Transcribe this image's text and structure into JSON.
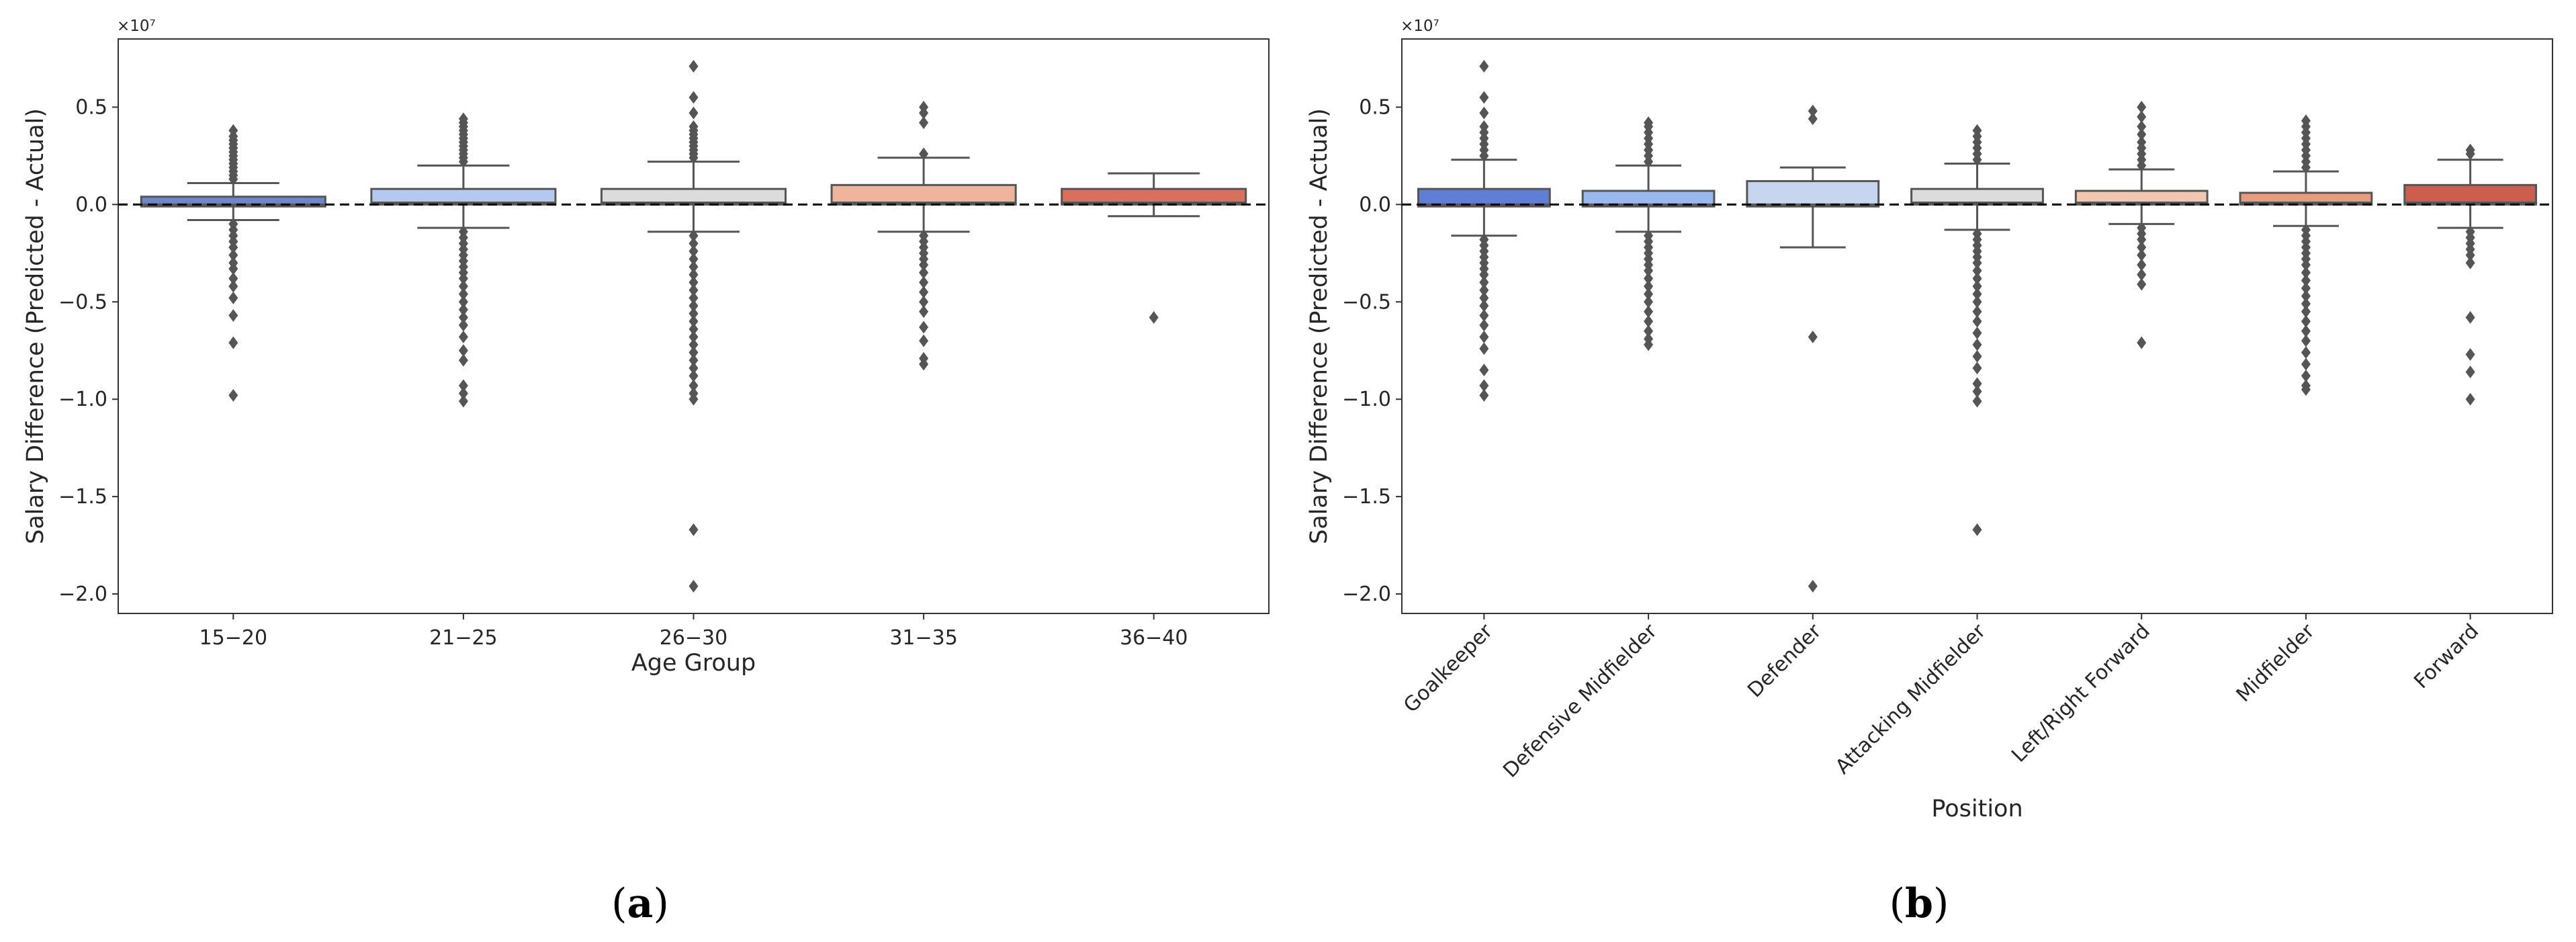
{
  "chart_data": [
    {
      "type": "box",
      "panel": "a",
      "caption_letter": "a",
      "xlabel": "Age Group",
      "ylabel": "Salary Difference (Predicted - Actual)",
      "y_offset_label": "×10⁷",
      "ylim": [
        -2.1,
        0.85
      ],
      "yticks": [
        0.5,
        0.0,
        -0.5,
        -1.0,
        -1.5,
        -2.0
      ],
      "ytick_labels": [
        "0.5",
        "0.0",
        "−0.5",
        "−1.0",
        "−1.5",
        "−2.0"
      ],
      "reference_line_y": 0.0,
      "categories": [
        "15−20",
        "21−25",
        "26−30",
        "31−35",
        "36−40"
      ],
      "colors": [
        "#6f87c8",
        "#b4c8f0",
        "#dcdcdc",
        "#efb59c",
        "#d96f5c"
      ],
      "boxes": [
        {
          "whisker_low": -0.08,
          "q1": -0.01,
          "median": 0.0,
          "q3": 0.04,
          "whisker_high": 0.11,
          "fliers_high": [
            0.13,
            0.15,
            0.17,
            0.19,
            0.21,
            0.23,
            0.25,
            0.27,
            0.29,
            0.31,
            0.33,
            0.35,
            0.38
          ],
          "fliers_low": [
            -0.1,
            -0.13,
            -0.16,
            -0.19,
            -0.22,
            -0.26,
            -0.3,
            -0.33,
            -0.38,
            -0.42,
            -0.48,
            -0.57,
            -0.71,
            -0.98
          ]
        },
        {
          "whisker_low": -0.12,
          "q1": 0.0,
          "median": 0.01,
          "q3": 0.08,
          "whisker_high": 0.2,
          "fliers_high": [
            0.22,
            0.24,
            0.26,
            0.28,
            0.3,
            0.32,
            0.34,
            0.36,
            0.38,
            0.4,
            0.42,
            0.44
          ],
          "fliers_low": [
            -0.14,
            -0.17,
            -0.2,
            -0.23,
            -0.26,
            -0.29,
            -0.32,
            -0.35,
            -0.38,
            -0.42,
            -0.46,
            -0.5,
            -0.54,
            -0.58,
            -0.62,
            -0.68,
            -0.75,
            -0.8,
            -0.93,
            -0.97,
            -1.01
          ]
        },
        {
          "whisker_low": -0.14,
          "q1": 0.0,
          "median": 0.01,
          "q3": 0.08,
          "whisker_high": 0.22,
          "fliers_high": [
            0.24,
            0.26,
            0.28,
            0.3,
            0.32,
            0.34,
            0.36,
            0.38,
            0.4,
            0.47,
            0.55,
            0.71
          ],
          "fliers_low": [
            -0.16,
            -0.2,
            -0.24,
            -0.28,
            -0.32,
            -0.36,
            -0.4,
            -0.44,
            -0.48,
            -0.52,
            -0.56,
            -0.6,
            -0.64,
            -0.68,
            -0.72,
            -0.76,
            -0.8,
            -0.84,
            -0.88,
            -0.93,
            -0.97,
            -1.0,
            -1.67,
            -1.96
          ]
        },
        {
          "whisker_low": -0.14,
          "q1": 0.0,
          "median": 0.01,
          "q3": 0.1,
          "whisker_high": 0.24,
          "fliers_high": [
            0.26,
            0.42,
            0.47,
            0.5
          ],
          "fliers_low": [
            -0.16,
            -0.19,
            -0.22,
            -0.25,
            -0.28,
            -0.31,
            -0.35,
            -0.4,
            -0.45,
            -0.5,
            -0.55,
            -0.63,
            -0.7,
            -0.79,
            -0.82
          ]
        },
        {
          "whisker_low": -0.06,
          "q1": 0.0,
          "median": 0.01,
          "q3": 0.08,
          "whisker_high": 0.16,
          "fliers_high": [],
          "fliers_low": [
            -0.58
          ]
        }
      ]
    },
    {
      "type": "box",
      "panel": "b",
      "caption_letter": "b",
      "xlabel": "Position",
      "ylabel": "Salary Difference (Predicted - Actual)",
      "y_offset_label": "×10⁷",
      "ylim": [
        -2.1,
        0.85
      ],
      "yticks": [
        0.5,
        0.0,
        -0.5,
        -1.0,
        -1.5,
        -2.0
      ],
      "ytick_labels": [
        "0.5",
        "0.0",
        "−0.5",
        "−1.0",
        "−1.5",
        "−2.0"
      ],
      "reference_line_y": 0.0,
      "categories": [
        "Goalkeeper",
        "Defensive Midfielder",
        "Defender",
        "Attacking Midfielder",
        "Left/Right Forward",
        "Midfielder",
        "Forward"
      ],
      "colors": [
        "#5f7fd6",
        "#9ab8f0",
        "#c7d5ee",
        "#dcdcdc",
        "#f1c7b0",
        "#e99b7e",
        "#cd5d4d"
      ],
      "boxes": [
        {
          "whisker_low": -0.16,
          "q1": -0.01,
          "median": 0.0,
          "q3": 0.08,
          "whisker_high": 0.23,
          "fliers_high": [
            0.25,
            0.28,
            0.31,
            0.34,
            0.37,
            0.4,
            0.47,
            0.55,
            0.71
          ],
          "fliers_low": [
            -0.18,
            -0.21,
            -0.24,
            -0.27,
            -0.3,
            -0.33,
            -0.36,
            -0.4,
            -0.44,
            -0.48,
            -0.52,
            -0.57,
            -0.62,
            -0.68,
            -0.74,
            -0.85,
            -0.93,
            -0.98
          ]
        },
        {
          "whisker_low": -0.14,
          "q1": -0.01,
          "median": 0.0,
          "q3": 0.07,
          "whisker_high": 0.2,
          "fliers_high": [
            0.22,
            0.25,
            0.28,
            0.31,
            0.34,
            0.37,
            0.4,
            0.42
          ],
          "fliers_low": [
            -0.16,
            -0.19,
            -0.22,
            -0.25,
            -0.28,
            -0.31,
            -0.34,
            -0.38,
            -0.42,
            -0.46,
            -0.5,
            -0.55,
            -0.6,
            -0.65,
            -0.69,
            -0.72
          ]
        },
        {
          "whisker_low": -0.22,
          "q1": -0.01,
          "median": 0.0,
          "q3": 0.12,
          "whisker_high": 0.19,
          "fliers_high": [
            0.44,
            0.48
          ],
          "fliers_low": [
            -0.68,
            -1.96
          ]
        },
        {
          "whisker_low": -0.13,
          "q1": 0.0,
          "median": 0.01,
          "q3": 0.08,
          "whisker_high": 0.21,
          "fliers_high": [
            0.23,
            0.26,
            0.29,
            0.32,
            0.35,
            0.38
          ],
          "fliers_low": [
            -0.15,
            -0.18,
            -0.21,
            -0.24,
            -0.27,
            -0.3,
            -0.34,
            -0.38,
            -0.42,
            -0.46,
            -0.5,
            -0.55,
            -0.6,
            -0.66,
            -0.72,
            -0.78,
            -0.84,
            -0.92,
            -0.96,
            -1.01,
            -1.67
          ]
        },
        {
          "whisker_low": -0.1,
          "q1": 0.0,
          "median": 0.01,
          "q3": 0.07,
          "whisker_high": 0.18,
          "fliers_high": [
            0.2,
            0.23,
            0.26,
            0.29,
            0.32,
            0.36,
            0.4,
            0.45,
            0.5
          ],
          "fliers_low": [
            -0.12,
            -0.15,
            -0.18,
            -0.22,
            -0.26,
            -0.31,
            -0.36,
            -0.41,
            -0.71
          ]
        },
        {
          "whisker_low": -0.11,
          "q1": 0.0,
          "median": 0.01,
          "q3": 0.06,
          "whisker_high": 0.17,
          "fliers_high": [
            0.19,
            0.22,
            0.25,
            0.28,
            0.31,
            0.34,
            0.37,
            0.4,
            0.43
          ],
          "fliers_low": [
            -0.13,
            -0.16,
            -0.19,
            -0.22,
            -0.25,
            -0.28,
            -0.31,
            -0.35,
            -0.39,
            -0.43,
            -0.47,
            -0.51,
            -0.55,
            -0.6,
            -0.65,
            -0.7,
            -0.76,
            -0.82,
            -0.88,
            -0.93,
            -0.95
          ]
        },
        {
          "whisker_low": -0.12,
          "q1": 0.0,
          "median": 0.01,
          "q3": 0.1,
          "whisker_high": 0.23,
          "fliers_high": [
            0.26,
            0.28
          ],
          "fliers_low": [
            -0.14,
            -0.17,
            -0.2,
            -0.23,
            -0.26,
            -0.3,
            -0.58,
            -0.77,
            -0.86,
            -1.0
          ]
        }
      ]
    }
  ]
}
